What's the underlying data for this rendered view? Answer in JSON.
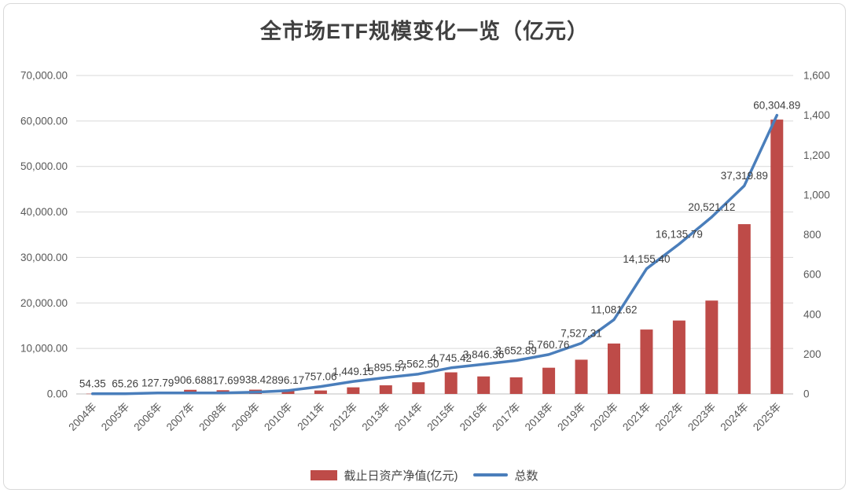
{
  "title": "全市场ETF规模变化一览（亿元）",
  "legend": {
    "bar_label": "截止日资产净值(亿元)",
    "line_label": "总数"
  },
  "colors": {
    "bar": "#be4b48",
    "line": "#4a7ebb",
    "grid": "#d9d9d9",
    "axis_line": "#bfbfbf",
    "axis_text": "#595959",
    "data_label": "#404040",
    "title_text": "#404040",
    "card_border": "#d9d9d9"
  },
  "chart_data": {
    "type": "bar",
    "subtype": "combo bar+line, dual axis",
    "title": "全市场ETF规模变化一览（亿元）",
    "categories": [
      "2004年",
      "2005年",
      "2006年",
      "2007年",
      "2008年",
      "2009年",
      "2010年",
      "2011年",
      "2012年",
      "2013年",
      "2014年",
      "2015年",
      "2016年",
      "2017年",
      "2018年",
      "2019年",
      "2020年",
      "2021年",
      "2022年",
      "2023年",
      "2024年",
      "2025年"
    ],
    "series": [
      {
        "name": "截止日资产净值(亿元)",
        "type": "bar",
        "axis": "left",
        "values": [
          54.35,
          65.26,
          127.79,
          906.68,
          817.69,
          938.42,
          896.17,
          757.06,
          1449.15,
          1895.57,
          2562.5,
          4745.42,
          3846.36,
          3652.89,
          5760.76,
          7527.31,
          11081.62,
          14155.4,
          16135.79,
          20521.12,
          37319.89,
          60304.89
        ],
        "labels": [
          "54.35",
          "65.26",
          "127.79",
          "906.68",
          "817.69",
          "938.42",
          "896.17",
          "757.06",
          "1,449.15",
          "1,895.57",
          "2,562.50",
          "4,745.42",
          "3,846.36",
          "3,652.89",
          "5,760.76",
          "7,527.31",
          "11,081.62",
          "14,155.40",
          "16,135.79",
          "20,521.12",
          "37,319.89",
          "60,304.89"
        ]
      },
      {
        "name": "总数",
        "type": "line",
        "axis": "right",
        "values": [
          1,
          1,
          5,
          5,
          5,
          9,
          17,
          37,
          63,
          82,
          100,
          131,
          149,
          168,
          198,
          255,
          373,
          629,
          753,
          889,
          1046,
          1400
        ]
      }
    ],
    "left_axis": {
      "min": 0,
      "max": 70000,
      "step": 10000,
      "ticks": [
        "70,000.00",
        "60,000.00",
        "50,000.00",
        "40,000.00",
        "30,000.00",
        "20,000.00",
        "10,000.00",
        "0.00"
      ]
    },
    "right_axis": {
      "min": 0,
      "max": 1600,
      "step": 200,
      "ticks": [
        "1,600",
        "1,400",
        "1,200",
        "1,000",
        "800",
        "600",
        "400",
        "200",
        "0"
      ]
    },
    "grid": "horizontal gridlines at left-axis ticks",
    "legend_position": "bottom center",
    "x_label_rotation": -45
  }
}
